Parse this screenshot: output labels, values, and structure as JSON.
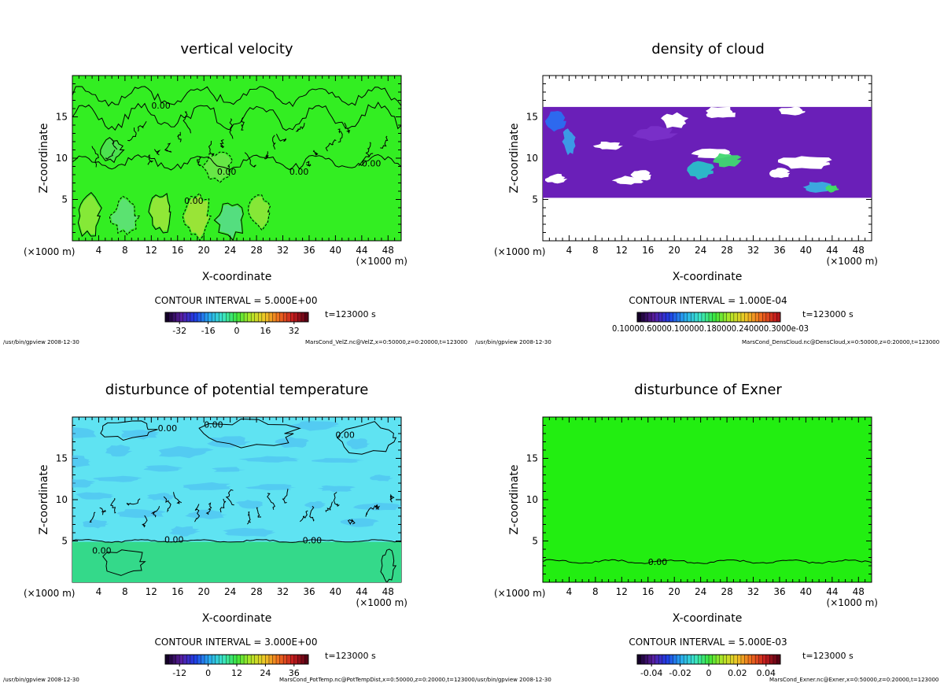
{
  "colors": {
    "velocity_field": "#33ee22",
    "cloud_field": "#6a1fb8",
    "theta_field": "#5fe3f2",
    "theta_field_low": "#34d98a",
    "exner_field": "#22ee11",
    "contour": "#000000",
    "axis": "#000000"
  },
  "chart_data": [
    {
      "type": "heatmap",
      "title": "vertical velocity",
      "xlabel": "X-coordinate",
      "ylabel": "Z-coordinate",
      "x_unit": "(×1000 m)",
      "x_unit_right": "(×1000 m)",
      "xlim": [
        0,
        50
      ],
      "ylim": [
        0,
        20
      ],
      "xticks": [
        "4",
        "8",
        "12",
        "16",
        "20",
        "24",
        "28",
        "32",
        "36",
        "40",
        "44",
        "48"
      ],
      "yticks": [
        "5",
        "10",
        "15"
      ],
      "contour_interval": "CONTOUR INTERVAL = 5.000E+00",
      "time": "t=123000 s",
      "colorbar_ticks": [
        "-32",
        "-16",
        "0",
        "16",
        "32"
      ],
      "colorbar_range": [
        -40,
        40
      ],
      "contour_labels": [
        "0.00",
        "0.00",
        "0.00",
        "0.00",
        "0.00"
      ],
      "footer_left": "/usr/bin/gpview  2008-12-30",
      "footer_right": "MarsCond_VelZ.nc@VelZ,x=0:50000,z=0:20000,t=123000"
    },
    {
      "type": "heatmap",
      "title": "density of cloud",
      "xlabel": "X-coordinate",
      "ylabel": "Z-coordinate",
      "x_unit": "(×1000 m)",
      "x_unit_right": "(×1000 m)",
      "xlim": [
        0,
        50
      ],
      "ylim": [
        0,
        20
      ],
      "xticks": [
        "4",
        "8",
        "12",
        "16",
        "20",
        "24",
        "28",
        "32",
        "36",
        "40",
        "44",
        "48"
      ],
      "yticks": [
        "5",
        "10",
        "15"
      ],
      "contour_interval": "CONTOUR INTERVAL = 1.000E-04",
      "time": "t=123000 s",
      "colorbar_ticks_text": "0.10000.60000.100000.180000.240000.3000e-03",
      "footer_left": "/usr/bin/gpview  2008-12-30",
      "footer_right": "MarsCond_DensCloud.nc@DensCloud,x=0:50000,z=0:20000,t=123000"
    },
    {
      "type": "heatmap",
      "title": "disturbunce of potential temperature",
      "xlabel": "X-coordinate",
      "ylabel": "Z-coordinate",
      "x_unit": "(×1000 m)",
      "x_unit_right": "(×1000 m)",
      "xlim": [
        0,
        50
      ],
      "ylim": [
        0,
        20
      ],
      "xticks": [
        "4",
        "8",
        "12",
        "16",
        "20",
        "24",
        "28",
        "32",
        "36",
        "40",
        "44",
        "48"
      ],
      "yticks": [
        "5",
        "10",
        "15"
      ],
      "contour_interval": "CONTOUR INTERVAL = 3.000E+00",
      "time": "t=123000 s",
      "colorbar_ticks": [
        "-12",
        "0",
        "12",
        "24",
        "36"
      ],
      "colorbar_range": [
        -18,
        42
      ],
      "contour_labels": [
        "0.00",
        "0.00",
        "0.00",
        "0.00",
        "0.00",
        "0.00"
      ],
      "footer_left": "/usr/bin/gpview  2008-12-30",
      "footer_right": "MarsCond_PotTemp.nc@PotTempDist,x=0:50000,z=0:20000,t=123000"
    },
    {
      "type": "heatmap",
      "title": "disturbunce of Exner",
      "xlabel": "X-coordinate",
      "ylabel": "Z-coordinate",
      "x_unit": "(×1000 m)",
      "x_unit_right": "(×1000 m)",
      "xlim": [
        0,
        50
      ],
      "ylim": [
        0,
        20
      ],
      "xticks": [
        "4",
        "8",
        "12",
        "16",
        "20",
        "24",
        "28",
        "32",
        "36",
        "40",
        "44",
        "48"
      ],
      "yticks": [
        "5",
        "10",
        "15"
      ],
      "contour_interval": "CONTOUR INTERVAL = 5.000E-03",
      "time": "t=123000 s",
      "colorbar_ticks": [
        "-0.04",
        "-0.02",
        "0",
        "0.02",
        "0.04"
      ],
      "colorbar_range": [
        -0.05,
        0.05
      ],
      "contour_labels": [
        "0.00"
      ],
      "footer_left": "/usr/bin/gpview  2008-12-30",
      "footer_right": "MarsCond_Exner.nc@Exner,x=0:50000,z=0:20000,t=123000"
    }
  ]
}
